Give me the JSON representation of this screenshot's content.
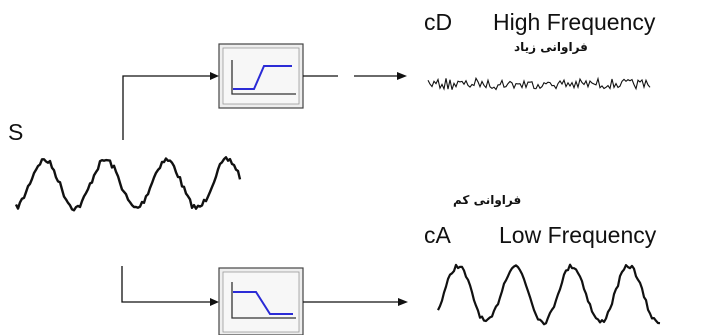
{
  "labels": {
    "input_signal": "S",
    "detail_code": "cD",
    "detail_name": "High Frequency",
    "detail_persian": "فراوانی زیاد",
    "approx_code": "cA",
    "approx_name": "Low Frequency",
    "approx_persian": "فراوانی کم"
  },
  "colors": {
    "line": "#111111",
    "filter_response": "#2b2bd6",
    "filter_box_fill": "#eeeeee",
    "filter_box_border": "#555555"
  },
  "icons": {
    "high_pass": "high-pass-filter-icon",
    "low_pass": "low-pass-filter-icon"
  }
}
